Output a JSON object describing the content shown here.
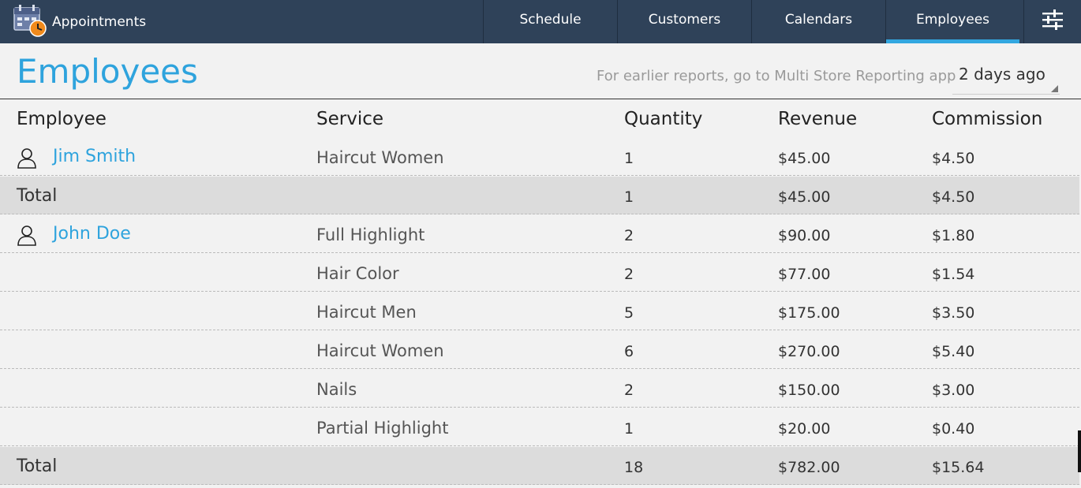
{
  "app": {
    "title": "Appointments"
  },
  "nav": {
    "tabs": [
      {
        "label": "Schedule"
      },
      {
        "label": "Customers"
      },
      {
        "label": "Calendars"
      },
      {
        "label": "Employees",
        "active": true
      }
    ]
  },
  "page": {
    "title": "Employees",
    "report_hint": "For earlier reports, go to Multi Store Reporting app",
    "range": "2 days ago"
  },
  "table": {
    "columns": [
      "Employee",
      "Service",
      "Quantity",
      "Revenue",
      "Commission"
    ],
    "rows": [
      {
        "employee": "Jim Smith",
        "service": "Haircut Women",
        "quantity": "1",
        "revenue": "$45.00",
        "commission": "$4.50"
      },
      {
        "total_label": "Total",
        "quantity": "1",
        "revenue": "$45.00",
        "commission": "$4.50"
      },
      {
        "employee": "John Doe",
        "service": "Full Highlight",
        "quantity": "2",
        "revenue": "$90.00",
        "commission": "$1.80"
      },
      {
        "service": "Hair Color",
        "quantity": "2",
        "revenue": "$77.00",
        "commission": "$1.54"
      },
      {
        "service": "Haircut Men",
        "quantity": "5",
        "revenue": "$175.00",
        "commission": "$3.50"
      },
      {
        "service": "Haircut Women",
        "quantity": "6",
        "revenue": "$270.00",
        "commission": "$5.40"
      },
      {
        "service": "Nails",
        "quantity": "2",
        "revenue": "$150.00",
        "commission": "$3.00"
      },
      {
        "service": "Partial Highlight",
        "quantity": "1",
        "revenue": "$20.00",
        "commission": "$0.40"
      },
      {
        "total_label": "Total",
        "quantity": "18",
        "revenue": "$782.00",
        "commission": "$15.64"
      }
    ]
  },
  "colors": {
    "topbar": "#2f4259",
    "accent": "#33a7e0",
    "link": "#2ea3dd",
    "total_row": "#dcdcdc"
  },
  "icons": {
    "app": "calendar-clock-icon",
    "settings": "sliders-icon",
    "employee": "person-icon"
  }
}
